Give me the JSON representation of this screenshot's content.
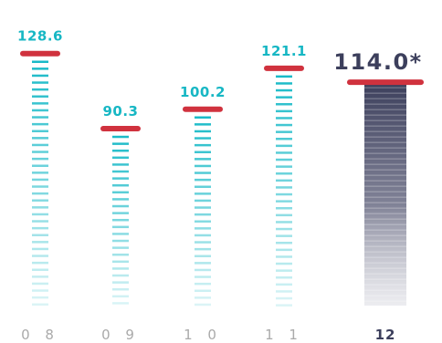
{
  "colors": {
    "background": "#ffffff",
    "accent_red": "#d0323e",
    "dash_teal": "#12b8c6",
    "value_teal": "#17b7c4",
    "highlight_dark": "#3c3f5c",
    "tick_gray": "#aaaaaa",
    "tick_dark": "#3c3f5c"
  },
  "chart_data": {
    "type": "bar",
    "title": "",
    "xlabel": "",
    "ylabel": "",
    "categories": [
      "0 8",
      "0 9",
      "1 0",
      "1 1",
      "12"
    ],
    "values": [
      128.6,
      90.3,
      100.2,
      121.1,
      114.0
    ],
    "value_labels": [
      "128.6",
      "90.3",
      "100.2",
      "121.1",
      "114.0*"
    ],
    "highlighted_index": 4,
    "grid": false,
    "legend": "none",
    "ylim": [
      0,
      135
    ]
  }
}
